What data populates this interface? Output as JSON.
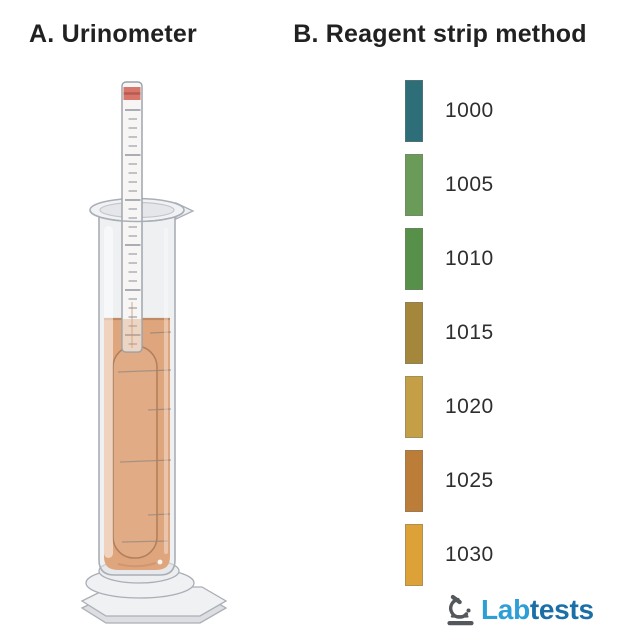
{
  "titles": {
    "figure_a": "A. Urinometer",
    "figure_b": "B. Reagent strip method"
  },
  "figure_a": {
    "description": "Glass cylinder on hexagonal base filled with amber urine, floating hydrometer with graduated stem and red cap band",
    "colors": {
      "liquid": "#dfa67e",
      "liquid_edge": "#c18a66",
      "liquid_bottom": "#cf9670",
      "bulb_outline": "#b2805e",
      "glass_fill": "#e8eaed",
      "glass_stroke": "#aaaeb6",
      "stem_fill": "#f7f6f4",
      "stem_stroke": "#9aa0a8",
      "cap": "#d8766c",
      "cap_dark": "#b85a52",
      "tick": "#8a8f98",
      "grad_line": "#5a6a78",
      "base_fill": "#f0f1f3",
      "base_edge": "#dcdee1"
    }
  },
  "reagent_scale": {
    "items": [
      {
        "label": "1000",
        "color": "#2d6e79"
      },
      {
        "label": "1005",
        "color": "#6b9b58"
      },
      {
        "label": "1010",
        "color": "#579048"
      },
      {
        "label": "1015",
        "color": "#a5873c"
      },
      {
        "label": "1020",
        "color": "#c59f45"
      },
      {
        "label": "1025",
        "color": "#bb7d38"
      },
      {
        "label": "1030",
        "color": "#dca238"
      }
    ]
  },
  "logo": {
    "lab": "Lab",
    "tests": "tests",
    "lab_color": "#2e9ed6",
    "tests_color": "#1b6fa6",
    "icon_color": "#54585c"
  }
}
